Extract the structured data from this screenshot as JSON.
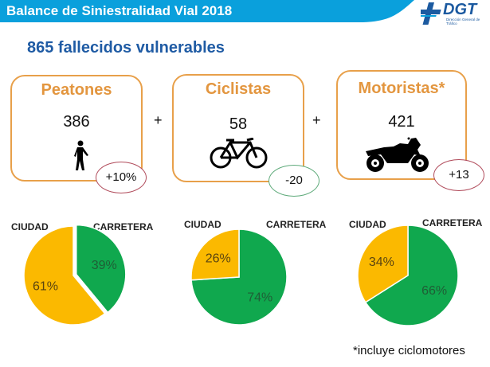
{
  "header": {
    "title": "Balance de Siniestralidad Vial 2018",
    "bar_color": "#0aa0dc"
  },
  "logo": {
    "name": "DGT",
    "subtitle": "Dirección General de Tráfico"
  },
  "subtitle": "865 fallecidos vulnerables",
  "operator": "+",
  "cards": [
    {
      "title": "Peatones",
      "value": "386",
      "icon": "pedestrian-icon",
      "change": "+10%",
      "change_border": "#c0504d"
    },
    {
      "title": "Ciclistas",
      "value": "58",
      "icon": "bicycle-icon",
      "change": "-20",
      "change_border": "#4aa86a"
    },
    {
      "title": "Motoristas*",
      "value": "421",
      "icon": "motorcycle-icon",
      "change": "+13",
      "change_border": "#c0504d"
    }
  ],
  "footnote": "*incluye ciclomotores",
  "chart_data": [
    {
      "type": "pie",
      "title": "Peatones",
      "labels": [
        "CIUDAD",
        "CARRETERA"
      ],
      "values": [
        61,
        39
      ],
      "display": [
        "61%",
        "39%"
      ],
      "colors": [
        "#fbb900",
        "#10a84e"
      ]
    },
    {
      "type": "pie",
      "title": "Ciclistas",
      "labels": [
        "CIUDAD",
        "CARRETERA"
      ],
      "values": [
        26,
        74
      ],
      "display": [
        "26%",
        "74%"
      ],
      "colors": [
        "#fbb900",
        "#10a84e"
      ]
    },
    {
      "type": "pie",
      "title": "Motoristas*",
      "labels": [
        "CIUDAD",
        "CARRETERA"
      ],
      "values": [
        34,
        66
      ],
      "display": [
        "34%",
        "66%"
      ],
      "colors": [
        "#fbb900",
        "#10a84e"
      ]
    }
  ]
}
